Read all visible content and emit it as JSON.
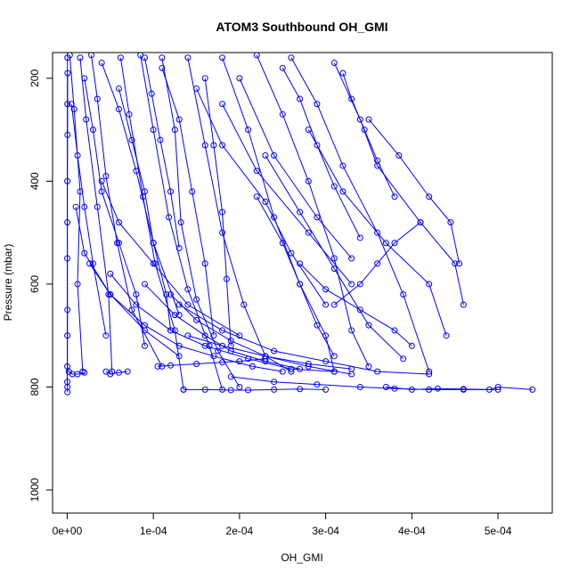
{
  "chart_data": {
    "type": "line",
    "title": "ATOM3 Southbound OH_GMI",
    "xlabel": "OH_GMI",
    "ylabel": "Pressure (mbar)",
    "xlim": [
      -1.7e-05,
      0.000563
    ],
    "ylim": [
      1045,
      150
    ],
    "y_reversed": true,
    "x_ticks": [
      0,
      0.0001,
      0.0002,
      0.0003,
      0.0004,
      0.0005
    ],
    "x_tick_labels": [
      "0e+00",
      "1e-04",
      "2e-04",
      "3e-04",
      "4e-04",
      "5e-04"
    ],
    "y_ticks": [
      200,
      400,
      600,
      800,
      1000
    ],
    "y_tick_labels": [
      "200",
      "400",
      "600",
      "800",
      "1000"
    ],
    "series_color": "#0000ff",
    "marker": "open-circle",
    "series": [
      {
        "x": [
          3e-07,
          2e-07,
          1e-07,
          1e-07,
          2e-07,
          1e-07,
          3e-07
        ],
        "y": [
          160,
          250,
          400,
          550,
          700,
          790,
          810
        ]
      },
      {
        "x": [
          5e-07,
          4e-07,
          2e-07,
          3e-07,
          2e-07
        ],
        "y": [
          190,
          310,
          480,
          650,
          800
        ]
      },
      {
        "x": [
          3e-06,
          8e-06,
          1.5e-05,
          1.2e-05,
          1.8e-05
        ],
        "y": [
          155,
          260,
          420,
          600,
          770
        ]
      },
      {
        "x": [
          1.5e-05,
          2.2e-05,
          3.5e-05,
          4.8e-05,
          5.2e-05
        ],
        "y": [
          160,
          280,
          450,
          620,
          770
        ]
      },
      {
        "x": [
          2.8e-05,
          3.5e-05,
          4.5e-05,
          5.8e-05,
          7.5e-05,
          0.00011
        ],
        "y": [
          155,
          240,
          390,
          520,
          650,
          760
        ]
      },
      {
        "x": [
          6.2e-05,
          7.2e-05,
          8.8e-05,
          0.000102,
          0.000125,
          0.000135
        ],
        "y": [
          160,
          270,
          430,
          560,
          690,
          805
        ]
      },
      {
        "x": [
          8.5e-05,
          0.0001,
          0.000118,
          0.00014,
          0.000165,
          0.00018
        ],
        "y": [
          155,
          300,
          470,
          610,
          720,
          805
        ]
      },
      {
        "x": [
          0.00011,
          0.000125,
          0.000132,
          0.00015,
          0.000175,
          0.0002
        ],
        "y": [
          160,
          300,
          480,
          630,
          730,
          800
        ]
      },
      {
        "x": [
          0.00014,
          0.00016,
          0.00018,
          0.000205,
          0.00023,
          0.00026
        ],
        "y": [
          160,
          330,
          500,
          640,
          740,
          770
        ]
      },
      {
        "x": [
          0.00018,
          0.00021,
          0.00024,
          0.00027,
          0.0003,
          0.00031
        ],
        "y": [
          160,
          300,
          470,
          600,
          700,
          770
        ]
      },
      {
        "x": [
          0.00022,
          0.00025,
          0.00028,
          0.00031,
          0.00033,
          0.00035
        ],
        "y": [
          155,
          270,
          400,
          550,
          690,
          760
        ]
      },
      {
        "x": [
          0.00026,
          0.00029,
          0.00032,
          0.00036,
          0.00039,
          0.00042
        ],
        "y": [
          160,
          250,
          370,
          500,
          620,
          770
        ]
      },
      {
        "x": [
          0.00031,
          0.00034,
          0.00036,
          0.00041,
          0.00045,
          0.00046
        ],
        "y": [
          170,
          280,
          370,
          480,
          560,
          640
        ]
      },
      {
        "x": [
          0.00028,
          0.00032,
          0.00037,
          0.00042,
          0.00044
        ],
        "y": [
          300,
          420,
          520,
          600,
          700
        ]
      },
      {
        "x": [
          0.00023,
          0.00027,
          0.00031,
          0.00035,
          0.00039
        ],
        "y": [
          350,
          460,
          570,
          680,
          745
        ]
      },
      {
        "x": [
          0.00035,
          0.000385,
          0.00042,
          0.000445,
          0.000455
        ],
        "y": [
          280,
          350,
          430,
          480,
          560
        ]
      },
      {
        "x": [
          2.6e-05,
          5e-05,
          9e-05,
          0.00013,
          0.00017,
          0.000215,
          0.00025
        ],
        "y": [
          560,
          620,
          680,
          720,
          740,
          760,
          770
        ]
      },
      {
        "x": [
          5e-05,
          8e-05,
          0.00012,
          0.00016,
          0.00021,
          0.00026,
          0.00031
        ],
        "y": [
          580,
          640,
          690,
          720,
          745,
          765,
          770
        ]
      },
      {
        "x": [
          9e-05,
          0.000125,
          0.00016,
          0.00019,
          0.00023,
          0.00027
        ],
        "y": [
          600,
          660,
          700,
          730,
          750,
          765
        ]
      },
      {
        "x": [
          0.00012,
          0.00015,
          0.00019,
          0.00023,
          0.00028,
          0.00033
        ],
        "y": [
          620,
          670,
          710,
          740,
          760,
          775
        ]
      },
      {
        "x": [
          0.00013,
          0.00018,
          0.00024,
          0.0003,
          0.00036,
          0.00042
        ],
        "y": [
          640,
          690,
          730,
          750,
          770,
          775
        ]
      },
      {
        "x": [
          0.00014,
          0.00018,
          0.00023,
          0.00028,
          0.00033
        ],
        "y": [
          700,
          720,
          740,
          755,
          765
        ]
      },
      {
        "x": [
          0.00037,
          0.0004,
          0.00043,
          0.00046,
          0.00049,
          0.0005,
          0.00054
        ],
        "y": [
          800,
          805,
          803,
          804,
          805,
          800,
          805
        ]
      },
      {
        "x": [
          0.000135,
          0.00016,
          0.00019,
          0.00021,
          0.00024,
          0.00027,
          0.0003
        ],
        "y": [
          805,
          805,
          806,
          806,
          805,
          804,
          805
        ]
      },
      {
        "x": [
          0.00019,
          0.00024,
          0.00029,
          0.00034,
          0.00038,
          0.00042,
          0.00046,
          0.0005
        ],
        "y": [
          780,
          790,
          795,
          800,
          803,
          805,
          805,
          805
        ]
      },
      {
        "x": [
          1e-07,
          2e-06,
          6e-06,
          1.2e-05,
          2e-05
        ],
        "y": [
          760,
          770,
          775,
          775,
          772
        ]
      },
      {
        "x": [
          4.5e-05,
          5e-05,
          6e-05,
          7e-05
        ],
        "y": [
          770,
          775,
          772,
          770
        ]
      },
      {
        "x": [
          0.00018,
          0.00022,
          0.00028,
          0.00033
        ],
        "y": [
          250,
          380,
          500,
          600
        ]
      },
      {
        "x": [
          0.0002,
          0.00024,
          0.00029,
          0.00033
        ],
        "y": [
          200,
          350,
          470,
          550
        ]
      },
      {
        "x": [
          0.00015,
          0.00018,
          0.00023,
          0.00026,
          0.0003
        ],
        "y": [
          220,
          330,
          440,
          540,
          640
        ]
      },
      {
        "x": [
          6e-05,
          7.5e-05,
          9e-05,
          0.0001,
          0.000115,
          0.00012
        ],
        "y": [
          220,
          320,
          420,
          520,
          620,
          690
        ]
      },
      {
        "x": [
          2e-05,
          3e-05,
          4e-05,
          6e-05,
          8e-05,
          9e-05
        ],
        "y": [
          200,
          300,
          420,
          520,
          620,
          720
        ]
      },
      {
        "x": [
          4e-05,
          6e-05,
          8e-05,
          0.0001,
          0.00013
        ],
        "y": [
          170,
          260,
          380,
          520,
          660
        ]
      },
      {
        "x": [
          0.00011,
          0.00013,
          0.000145,
          0.00016,
          0.00017
        ],
        "y": [
          180,
          280,
          420,
          560,
          700
        ]
      },
      {
        "x": [
          0.00016,
          0.00017,
          0.00018,
          0.000185,
          0.00019
        ],
        "y": [
          200,
          330,
          460,
          590,
          720
        ]
      },
      {
        "x": [
          0.00025,
          0.00027,
          0.00029,
          0.00031,
          0.00034
        ],
        "y": [
          180,
          240,
          330,
          410,
          510
        ]
      },
      {
        "x": [
          0.00032,
          0.00033,
          0.000345,
          0.00036,
          0.00038
        ],
        "y": [
          190,
          240,
          300,
          360,
          430
        ]
      },
      {
        "x": [
          4e-05,
          6e-05,
          0.0001,
          0.00014,
          0.0002
        ],
        "y": [
          400,
          480,
          560,
          640,
          700
        ]
      },
      {
        "x": [
          1e-05,
          2e-05,
          5e-05,
          9e-05,
          0.00013
        ],
        "y": [
          450,
          540,
          620,
          690,
          740
        ]
      },
      {
        "x": [
          0.00022,
          0.00025,
          0.00027,
          0.00029,
          0.00031
        ],
        "y": [
          430,
          520,
          600,
          680,
          740
        ]
      },
      {
        "x": [
          0.00027,
          0.0003,
          0.00034,
          0.00038,
          0.0004
        ],
        "y": [
          560,
          610,
          650,
          690,
          720
        ]
      },
      {
        "x": [
          0.000105,
          0.00012,
          0.00015,
          0.00018,
          0.0002,
          0.00023
        ],
        "y": [
          760,
          758,
          755,
          752,
          750,
          745
        ]
      },
      {
        "x": [
          0.00031,
          0.00034,
          0.00036,
          0.00038,
          0.00041
        ],
        "y": [
          640,
          600,
          560,
          520,
          480
        ]
      },
      {
        "x": [
          5e-06,
          1.2e-05,
          2e-05,
          3e-05,
          4.5e-05
        ],
        "y": [
          250,
          350,
          450,
          560,
          700
        ]
      },
      {
        "x": [
          9e-05,
          9.8e-05,
          0.000108,
          0.00012,
          0.00013
        ],
        "y": [
          160,
          230,
          320,
          420,
          530
        ]
      }
    ]
  }
}
